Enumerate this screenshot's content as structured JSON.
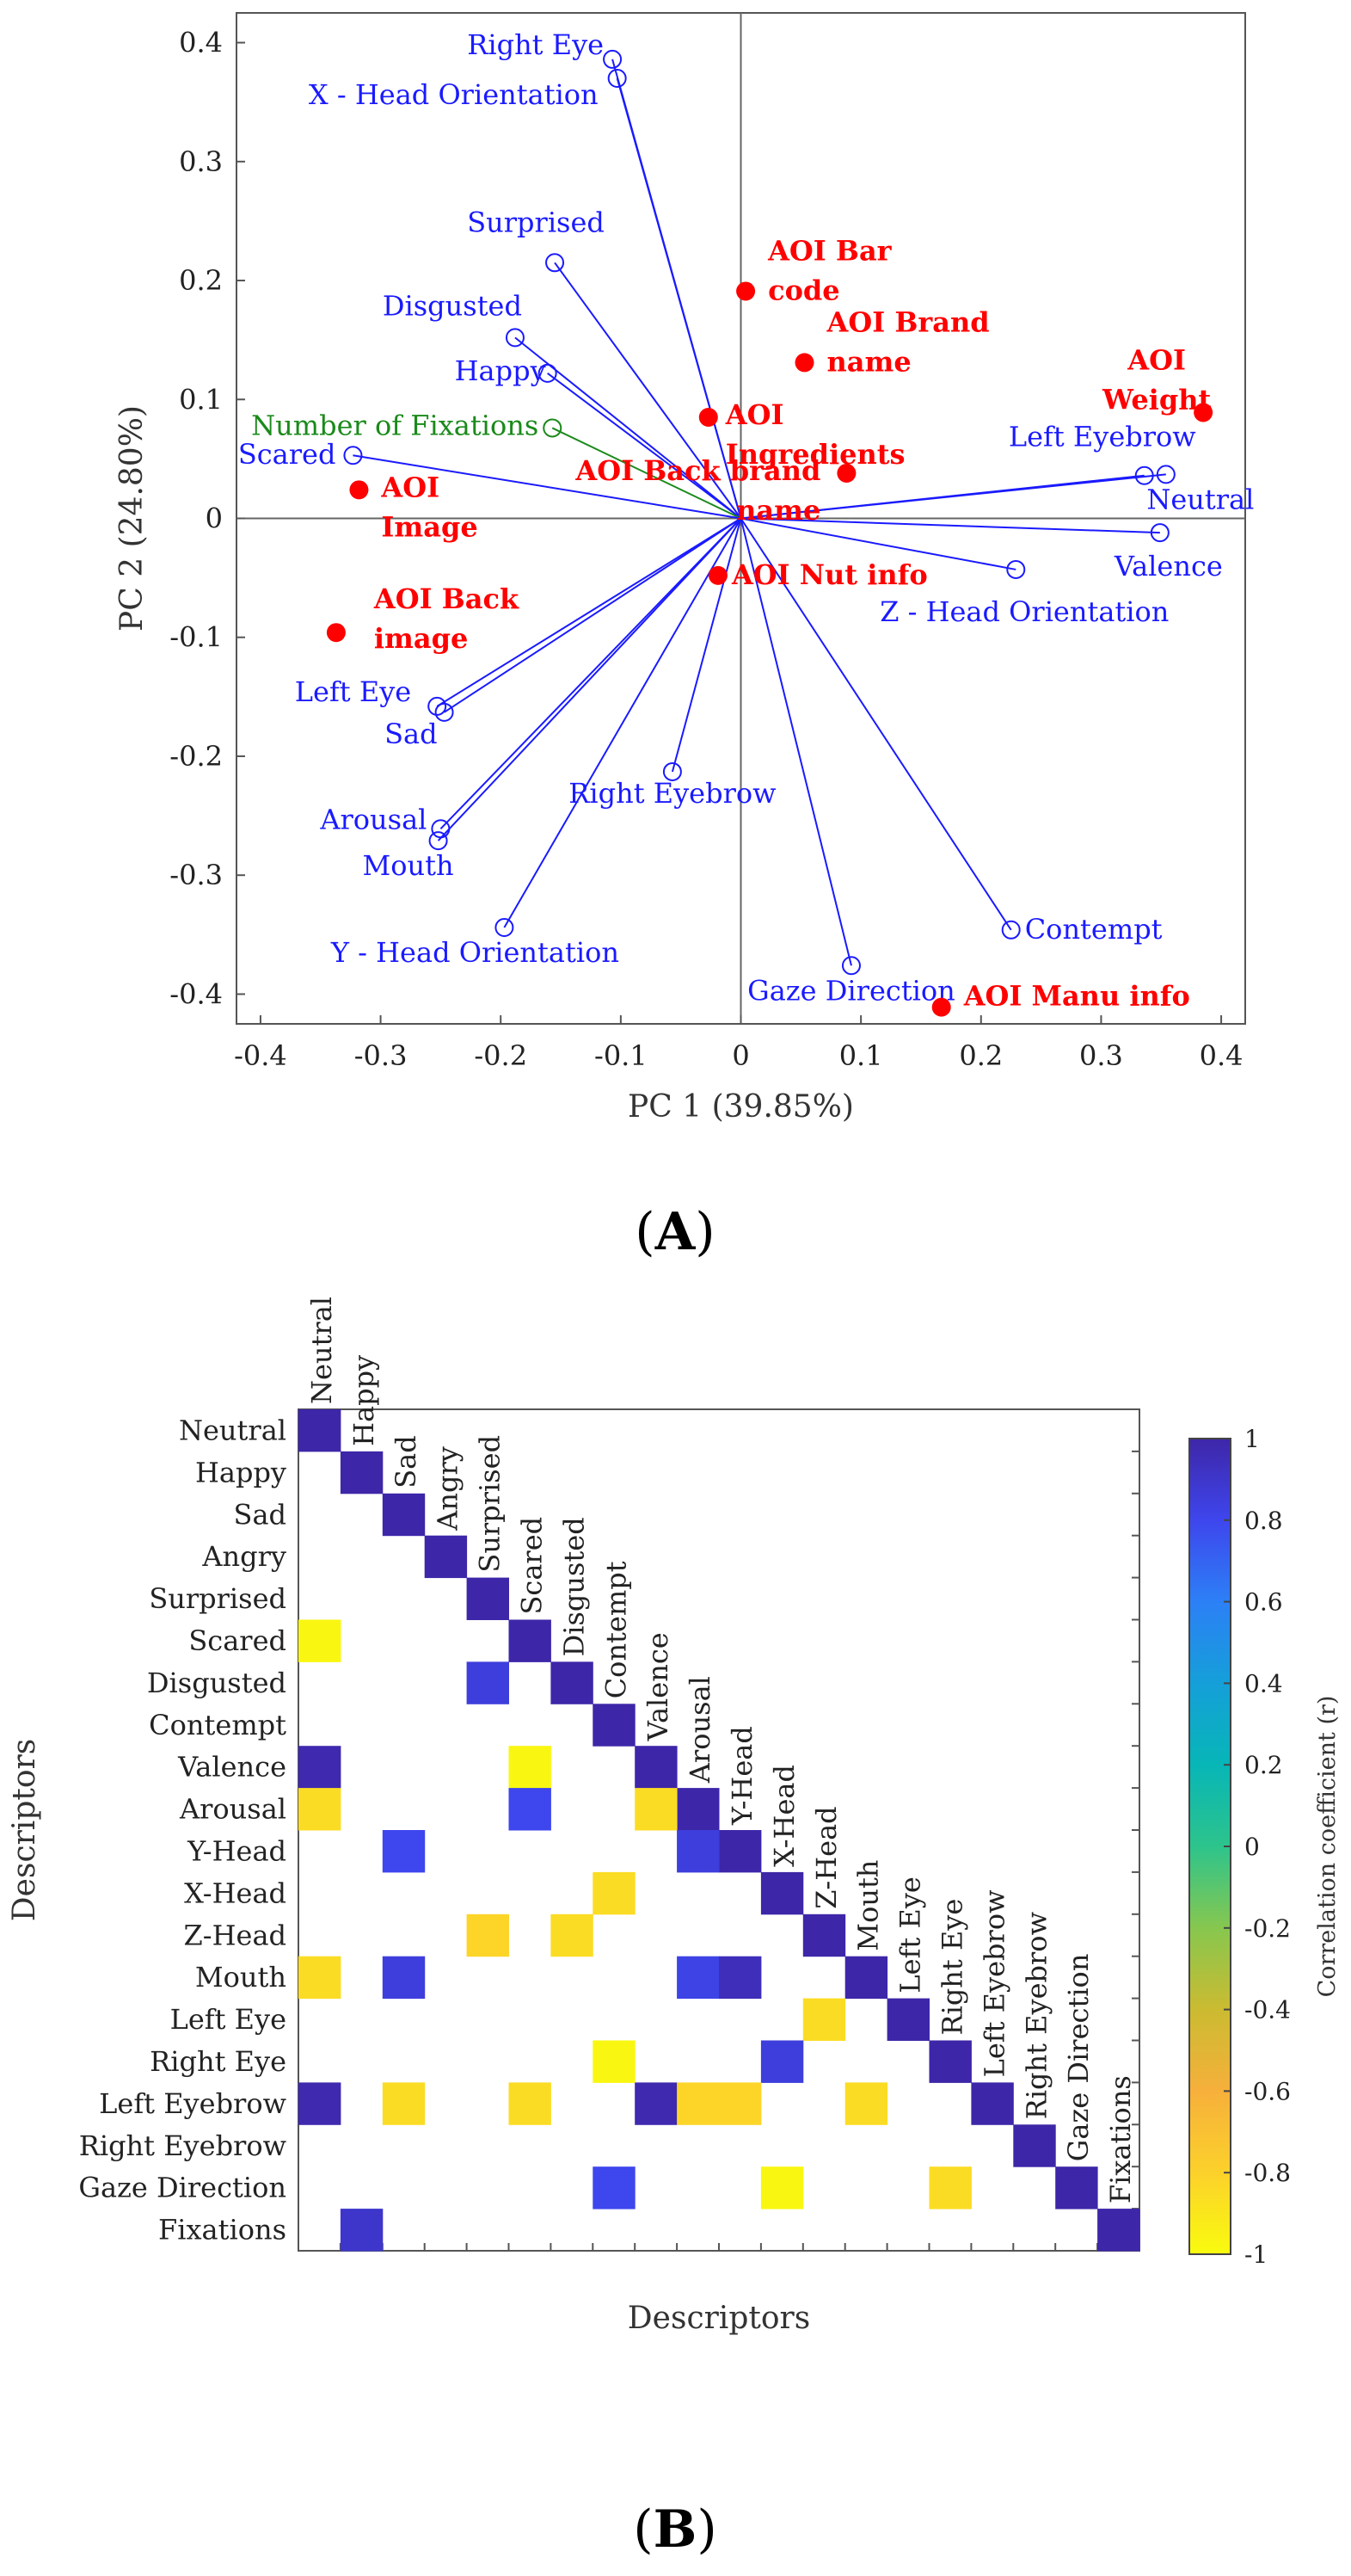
{
  "panel_a_label": "A",
  "panel_b_label": "B",
  "chart_data": [
    {
      "type": "scatter",
      "panel": "A",
      "xlabel": "PC 1 (39.85%)",
      "ylabel": "PC 2 (24.80%)",
      "xlim": [
        -0.42,
        0.42
      ],
      "ylim": [
        -0.425,
        0.425
      ],
      "xticks": [
        -0.4,
        -0.3,
        -0.2,
        -0.1,
        0,
        0.1,
        0.2,
        0.3,
        0.4
      ],
      "xtick_labels": [
        "-0.4",
        "-0.3",
        "-0.2",
        "-0.1",
        "0",
        "0.1",
        "0.2",
        "0.3",
        "0.4"
      ],
      "yticks": [
        -0.4,
        -0.3,
        -0.2,
        -0.1,
        0,
        0.1,
        0.2,
        0.3,
        0.4
      ],
      "ytick_labels": [
        "-0.4",
        "-0.3",
        "-0.2",
        "-0.1",
        "0",
        "0.1",
        "0.2",
        "0.3",
        "0.4"
      ],
      "colors": {
        "loading": "#1a1aff",
        "fixations": "#1a8a1a",
        "aoi": "#ff0000",
        "axis": "#000000"
      },
      "loadings": [
        {
          "label": "Right Eye",
          "x": -0.107,
          "y": 0.386,
          "anchor": "end",
          "dx": -10,
          "dy": -6
        },
        {
          "label": "X - Head Orientation",
          "x": -0.103,
          "y": 0.37,
          "anchor": "end",
          "dx": -22,
          "dy": 30
        },
        {
          "label": "Surprised",
          "x": -0.155,
          "y": 0.215,
          "anchor": "middle",
          "dx": -22,
          "dy": -36
        },
        {
          "label": "Disgusted",
          "x": -0.188,
          "y": 0.152,
          "anchor": "end",
          "dx": 8,
          "dy": -26
        },
        {
          "label": "Happy",
          "x": -0.161,
          "y": 0.122,
          "anchor": "end",
          "dx": -2,
          "dy": 8
        },
        {
          "label": "Number of Fixations",
          "x": -0.157,
          "y": 0.076,
          "anchor": "end",
          "dx": -16,
          "dy": 8,
          "group": "fixations"
        },
        {
          "label": "Scared",
          "x": -0.323,
          "y": 0.053,
          "anchor": "end",
          "dx": -20,
          "dy": 10
        },
        {
          "label": "Left Eyebrow",
          "x": 0.336,
          "y": 0.036,
          "anchor": "end",
          "dx": 60,
          "dy": -34
        },
        {
          "label": "Neutral",
          "x": 0.354,
          "y": 0.037,
          "anchor": "middle",
          "dx": 40,
          "dy": 40
        },
        {
          "label": "Valence",
          "x": 0.349,
          "y": -0.012,
          "anchor": "middle",
          "dx": 10,
          "dy": 50
        },
        {
          "label": "Z - Head Orientation",
          "x": 0.229,
          "y": -0.043,
          "anchor": "middle",
          "dx": 10,
          "dy": 60
        },
        {
          "label": "Left Eye",
          "x": -0.253,
          "y": -0.158,
          "anchor": "end",
          "dx": -30,
          "dy": -6
        },
        {
          "label": "Sad",
          "x": -0.247,
          "y": -0.163,
          "anchor": "end",
          "dx": -8,
          "dy": 36
        },
        {
          "label": "Right Eyebrow",
          "x": -0.057,
          "y": -0.213,
          "anchor": "middle",
          "dx": 0,
          "dy": 36
        },
        {
          "label": "Arousal",
          "x": -0.25,
          "y": -0.261,
          "anchor": "end",
          "dx": -16,
          "dy": 0
        },
        {
          "label": "Mouth",
          "x": -0.252,
          "y": -0.271,
          "anchor": "end",
          "dx": 18,
          "dy": 40
        },
        {
          "label": "Y - Head Orientation",
          "x": -0.197,
          "y": -0.344,
          "anchor": "middle",
          "dx": -34,
          "dy": 40
        },
        {
          "label": "Contempt",
          "x": 0.225,
          "y": -0.346,
          "anchor": "start",
          "dx": 16,
          "dy": 10
        },
        {
          "label": "Gaze Direction",
          "x": 0.092,
          "y": -0.376,
          "anchor": "middle",
          "dx": 0,
          "dy": 40
        }
      ],
      "aoi_points": [
        {
          "label": "AOI Bar code",
          "lines": [
            "AOI Bar",
            "code"
          ],
          "x": 0.004,
          "y": 0.191,
          "anchor": "start",
          "dx": 26,
          "dy": -36
        },
        {
          "label": "AOI Brand name",
          "lines": [
            "AOI Brand",
            "name"
          ],
          "x": 0.053,
          "y": 0.131,
          "anchor": "start",
          "dx": 26,
          "dy": -36
        },
        {
          "label": "AOI Weight",
          "lines": [
            "AOI",
            "Weight"
          ],
          "x": 0.385,
          "y": 0.089,
          "anchor": "middle",
          "dx": -54,
          "dy": -50
        },
        {
          "label": "AOI Ingredients",
          "lines": [
            "AOI",
            "Ingredients"
          ],
          "x": -0.027,
          "y": 0.085,
          "anchor": "start",
          "dx": 20,
          "dy": 8
        },
        {
          "label": "AOI Back brand name",
          "lines": [
            "AOI Back brand",
            "name"
          ],
          "x": 0.088,
          "y": 0.038,
          "anchor": "end",
          "dx": -30,
          "dy": 8
        },
        {
          "label": "AOI Image",
          "lines": [
            "AOI",
            "Image"
          ],
          "x": -0.318,
          "y": 0.024,
          "anchor": "start",
          "dx": 26,
          "dy": 8
        },
        {
          "label": "AOI Nut info",
          "lines": [
            "AOI Nut info"
          ],
          "x": -0.019,
          "y": -0.048,
          "anchor": "start",
          "dx": 16,
          "dy": 10
        },
        {
          "label": "AOI Back image",
          "lines": [
            "AOI Back",
            "image"
          ],
          "x": -0.337,
          "y": -0.096,
          "anchor": "start",
          "dx": 44,
          "dy": -28
        },
        {
          "label": "AOI Manu info",
          "lines": [
            "AOI Manu info"
          ],
          "x": 0.167,
          "y": -0.411,
          "anchor": "start",
          "dx": 26,
          "dy": -2
        }
      ]
    },
    {
      "type": "heatmap",
      "panel": "B",
      "xlabel": "Descriptors",
      "ylabel": "Descriptors",
      "colorbar_label": "Correlation coefficient (r)",
      "colorbar_ticks": [
        1,
        0.8,
        0.6,
        0.4,
        0.2,
        0,
        -0.2,
        -0.4,
        -0.6,
        -0.8,
        -1
      ],
      "colorbar_tick_labels": [
        "1",
        "0.8",
        "0.6",
        "0.4",
        "0.2",
        "0",
        "-0.2",
        "-0.4",
        "-0.6",
        "-0.8",
        "-1"
      ],
      "colormap": [
        "#3e26a8",
        "#3e46ed",
        "#2c80f6",
        "#159fd9",
        "#07b6b7",
        "#2dc48c",
        "#87c74f",
        "#cbbb31",
        "#f6b03b",
        "#fcd12b",
        "#f9fb0e"
      ],
      "row_labels": [
        "Neutral",
        "Happy",
        "Sad",
        "Angry",
        "Surprised",
        "Scared",
        "Disgusted",
        "Contempt",
        "Valence",
        "Arousal",
        "Y-Head",
        "X-Head",
        "Z-Head",
        "Mouth",
        "Left Eye",
        "Right Eye",
        "Left Eyebrow",
        "Right Eyebrow",
        "Gaze Direction",
        "Fixations"
      ],
      "col_labels": [
        "Neutral",
        "Happy",
        "Sad",
        "Angry",
        "Surprised",
        "Scared",
        "Disgusted",
        "Contempt",
        "Valence",
        "Arousal",
        "Y-Head",
        "X-Head",
        "Z-Head",
        "Mouth",
        "Left Eye",
        "Right Eye",
        "Left Eyebrow",
        "Right Eyebrow",
        "Gaze Direction",
        "Fixations"
      ],
      "cells": [
        {
          "row": 0,
          "col": 0,
          "r": 1
        },
        {
          "row": 1,
          "col": 1,
          "r": 1
        },
        {
          "row": 2,
          "col": 2,
          "r": 1
        },
        {
          "row": 3,
          "col": 3,
          "r": 1
        },
        {
          "row": 4,
          "col": 4,
          "r": 1
        },
        {
          "row": 5,
          "col": 5,
          "r": 1
        },
        {
          "row": 6,
          "col": 6,
          "r": 1
        },
        {
          "row": 7,
          "col": 7,
          "r": 1
        },
        {
          "row": 8,
          "col": 8,
          "r": 1
        },
        {
          "row": 9,
          "col": 9,
          "r": 1
        },
        {
          "row": 10,
          "col": 10,
          "r": 1
        },
        {
          "row": 11,
          "col": 11,
          "r": 1
        },
        {
          "row": 12,
          "col": 12,
          "r": 1
        },
        {
          "row": 13,
          "col": 13,
          "r": 1
        },
        {
          "row": 14,
          "col": 14,
          "r": 1
        },
        {
          "row": 15,
          "col": 15,
          "r": 1
        },
        {
          "row": 16,
          "col": 16,
          "r": 1
        },
        {
          "row": 17,
          "col": 17,
          "r": 1
        },
        {
          "row": 18,
          "col": 18,
          "r": 1
        },
        {
          "row": 19,
          "col": 19,
          "r": 1
        },
        {
          "row": 5,
          "col": 0,
          "r": -0.98
        },
        {
          "row": 6,
          "col": 4,
          "r": 0.85
        },
        {
          "row": 8,
          "col": 0,
          "r": 0.98
        },
        {
          "row": 8,
          "col": 5,
          "r": -0.98
        },
        {
          "row": 9,
          "col": 0,
          "r": -0.85
        },
        {
          "row": 9,
          "col": 5,
          "r": 0.8
        },
        {
          "row": 9,
          "col": 8,
          "r": -0.85
        },
        {
          "row": 10,
          "col": 2,
          "r": 0.8
        },
        {
          "row": 10,
          "col": 9,
          "r": 0.85
        },
        {
          "row": 11,
          "col": 7,
          "r": -0.85
        },
        {
          "row": 12,
          "col": 4,
          "r": -0.82
        },
        {
          "row": 12,
          "col": 6,
          "r": -0.85
        },
        {
          "row": 13,
          "col": 0,
          "r": -0.85
        },
        {
          "row": 13,
          "col": 2,
          "r": 0.85
        },
        {
          "row": 13,
          "col": 9,
          "r": 0.82
        },
        {
          "row": 13,
          "col": 10,
          "r": 0.95
        },
        {
          "row": 14,
          "col": 12,
          "r": -0.85
        },
        {
          "row": 15,
          "col": 7,
          "r": -0.98
        },
        {
          "row": 15,
          "col": 11,
          "r": 0.85
        },
        {
          "row": 16,
          "col": 0,
          "r": 0.98
        },
        {
          "row": 16,
          "col": 2,
          "r": -0.85
        },
        {
          "row": 16,
          "col": 5,
          "r": -0.85
        },
        {
          "row": 16,
          "col": 8,
          "r": 0.98
        },
        {
          "row": 16,
          "col": 9,
          "r": -0.82
        },
        {
          "row": 16,
          "col": 10,
          "r": -0.82
        },
        {
          "row": 16,
          "col": 13,
          "r": -0.85
        },
        {
          "row": 18,
          "col": 7,
          "r": 0.8
        },
        {
          "row": 18,
          "col": 11,
          "r": -0.98
        },
        {
          "row": 18,
          "col": 15,
          "r": -0.85
        },
        {
          "row": 19,
          "col": 1,
          "r": 0.9
        }
      ]
    }
  ]
}
